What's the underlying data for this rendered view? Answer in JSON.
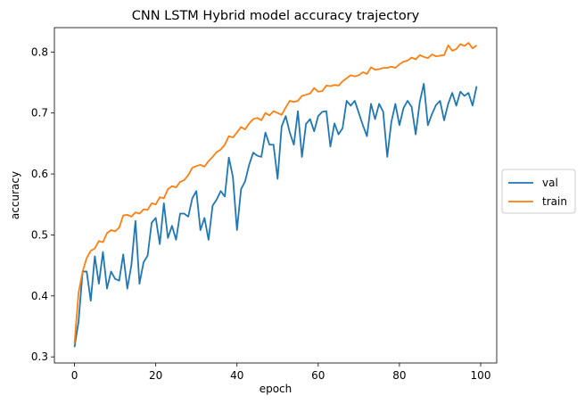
{
  "chart_data": {
    "type": "line",
    "title": "CNN LSTM Hybrid model accuracy trajectory",
    "xlabel": "epoch",
    "ylabel": "accuracy",
    "xlim": [
      -4.95,
      103.95
    ],
    "ylim": [
      0.29,
      0.84
    ],
    "xticks": [
      0,
      20,
      40,
      60,
      80,
      100
    ],
    "yticks": [
      0.3,
      0.4,
      0.5,
      0.6,
      0.7,
      0.8
    ],
    "xtick_labels": [
      "0",
      "20",
      "40",
      "60",
      "80",
      "100"
    ],
    "ytick_labels": [
      "0.3",
      "0.4",
      "0.5",
      "0.6",
      "0.7",
      "0.8"
    ],
    "grid": false,
    "legend": "center-right-outside",
    "series": [
      {
        "name": "val",
        "color": "#1f77b4",
        "values": [
          0.316,
          0.358,
          0.44,
          0.44,
          0.392,
          0.465,
          0.42,
          0.472,
          0.412,
          0.44,
          0.428,
          0.425,
          0.468,
          0.412,
          0.45,
          0.523,
          0.42,
          0.455,
          0.466,
          0.52,
          0.528,
          0.485,
          0.552,
          0.495,
          0.515,
          0.492,
          0.535,
          0.535,
          0.53,
          0.56,
          0.572,
          0.508,
          0.528,
          0.492,
          0.548,
          0.558,
          0.572,
          0.563,
          0.627,
          0.595,
          0.508,
          0.575,
          0.588,
          0.615,
          0.635,
          0.63,
          0.628,
          0.668,
          0.648,
          0.648,
          0.592,
          0.678,
          0.695,
          0.668,
          0.648,
          0.703,
          0.628,
          0.682,
          0.69,
          0.67,
          0.695,
          0.702,
          0.703,
          0.645,
          0.683,
          0.665,
          0.675,
          0.72,
          0.712,
          0.72,
          0.7,
          0.68,
          0.662,
          0.715,
          0.69,
          0.715,
          0.702,
          0.628,
          0.685,
          0.715,
          0.68,
          0.708,
          0.72,
          0.71,
          0.665,
          0.718,
          0.748,
          0.68,
          0.698,
          0.713,
          0.72,
          0.688,
          0.715,
          0.733,
          0.712,
          0.735,
          0.728,
          0.733,
          0.712,
          0.744
        ]
      },
      {
        "name": "train",
        "color": "#ff7f0e",
        "values": [
          0.322,
          0.405,
          0.44,
          0.462,
          0.474,
          0.478,
          0.49,
          0.488,
          0.503,
          0.508,
          0.506,
          0.512,
          0.532,
          0.533,
          0.53,
          0.537,
          0.535,
          0.542,
          0.541,
          0.552,
          0.55,
          0.562,
          0.56,
          0.575,
          0.58,
          0.578,
          0.587,
          0.59,
          0.598,
          0.61,
          0.613,
          0.615,
          0.612,
          0.621,
          0.628,
          0.636,
          0.64,
          0.648,
          0.662,
          0.66,
          0.668,
          0.677,
          0.673,
          0.683,
          0.69,
          0.692,
          0.688,
          0.7,
          0.696,
          0.703,
          0.7,
          0.697,
          0.709,
          0.72,
          0.718,
          0.72,
          0.728,
          0.73,
          0.732,
          0.741,
          0.735,
          0.736,
          0.745,
          0.744,
          0.746,
          0.745,
          0.752,
          0.757,
          0.762,
          0.76,
          0.762,
          0.767,
          0.764,
          0.775,
          0.771,
          0.772,
          0.774,
          0.774,
          0.776,
          0.774,
          0.78,
          0.784,
          0.786,
          0.791,
          0.788,
          0.795,
          0.792,
          0.79,
          0.796,
          0.793,
          0.794,
          0.795,
          0.811,
          0.802,
          0.805,
          0.813,
          0.81,
          0.815,
          0.806,
          0.811
        ]
      }
    ]
  }
}
